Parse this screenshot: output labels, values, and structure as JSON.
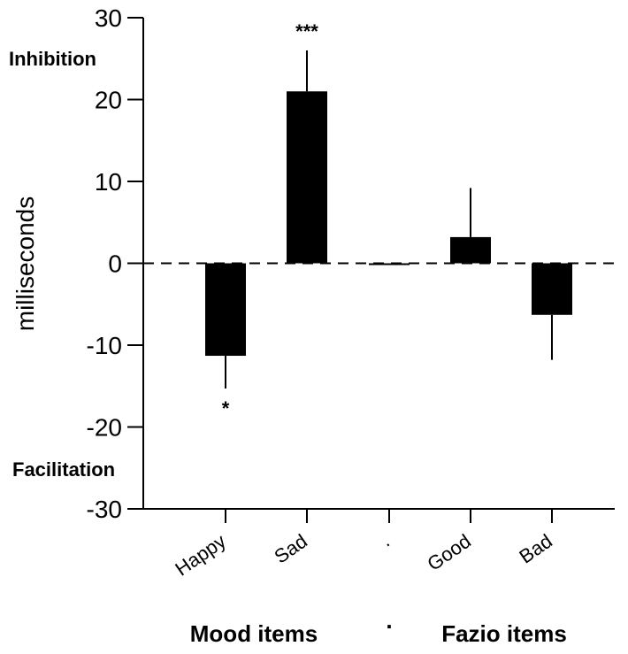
{
  "chart_data": {
    "type": "bar",
    "ylabel": "milliseconds",
    "ylim": [
      -30,
      30
    ],
    "yticks": [
      30,
      20,
      10,
      0,
      -10,
      -20,
      -30
    ],
    "categories": [
      "Happy",
      "Sad",
      ".",
      "Good",
      "Bad"
    ],
    "values": [
      -11.3,
      21.0,
      0,
      3.2,
      -6.3
    ],
    "error": [
      4.0,
      5.0,
      0,
      6.0,
      5.5
    ],
    "significance": [
      "*",
      "***",
      "",
      "",
      ""
    ],
    "region_labels": {
      "positive": "Inhibition",
      "negative": "Facilitation"
    },
    "groups": [
      {
        "label": "Mood items",
        "categories": [
          "Happy",
          "Sad"
        ]
      },
      {
        "label": "Fazio items",
        "categories": [
          "Good",
          "Bad"
        ]
      }
    ],
    "group_separator": ".",
    "bar_color": "#000000",
    "zero_line": "dashed",
    "grid": false
  }
}
